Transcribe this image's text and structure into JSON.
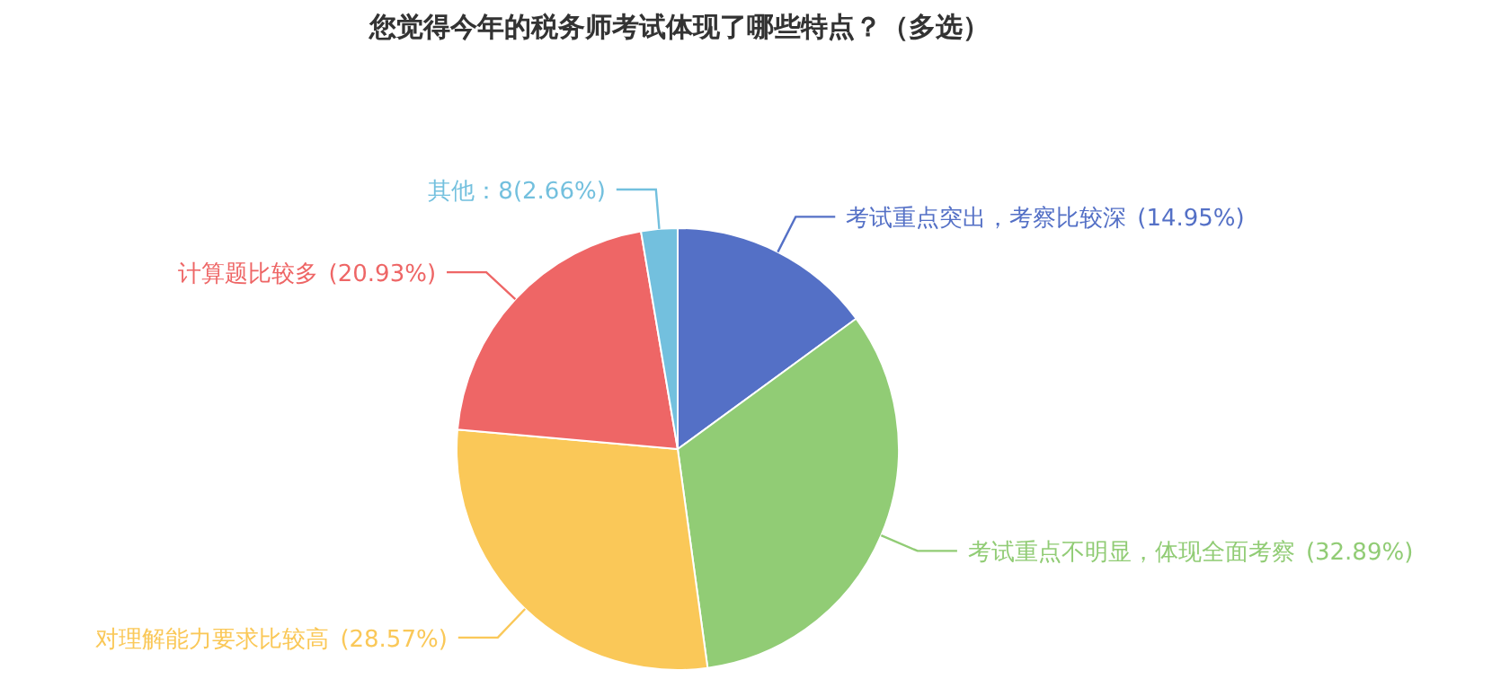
{
  "chart_data": {
    "type": "pie",
    "title": "您觉得今年的税务师考试体现了哪些特点？（多选）",
    "categories": [
      "考试重点突出，考察比较深",
      "考试重点不明显，体现全面考察",
      "对理解能力要求比较高",
      "计算题比较多",
      "其他：8(2.66%)"
    ],
    "values": [
      14.95,
      32.89,
      28.57,
      20.93,
      2.66
    ],
    "value_labels": [
      "(14.95%)",
      "(32.89%)",
      "(28.57%)",
      "(20.93%)",
      null
    ],
    "colors": [
      "#5470c6",
      "#91cc75",
      "#fac858",
      "#ee6666",
      "#73c0de"
    ]
  }
}
